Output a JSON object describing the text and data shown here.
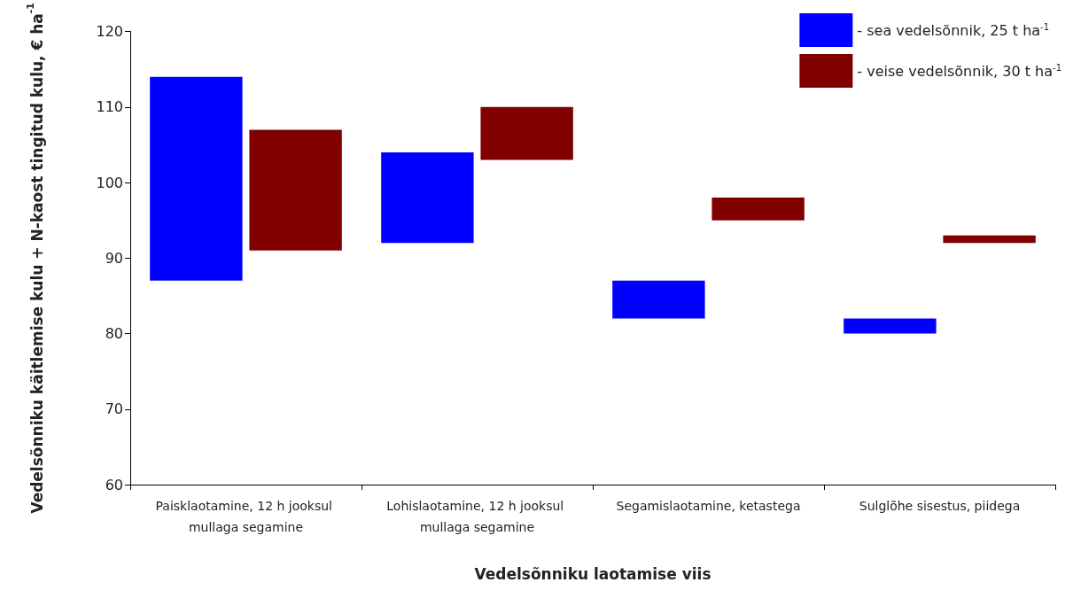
{
  "chart_data": {
    "type": "bar",
    "xlabel": "Vedelsõnniku laotamise viis",
    "ylabel": "Vedelsõnniku käitlemise kulu + N-kaost tingitud kulu, € ha$^{-1}$",
    "categories": [
      "Paisklaotamine, 12 h jooksul mullaga segamine",
      "Lohislaotamine, 12 h jooksul mullaga segamine",
      "Segamislaotamine, ketastega",
      "Sulglõhe sisestus, piidega"
    ],
    "series": [
      {
        "name": "- sea vedelsõnnik, 25 t ha$^{-1}$",
        "color": "#0000ff",
        "base": [
          87,
          92,
          82,
          80
        ],
        "values": [
          27,
          12,
          5,
          2
        ]
      },
      {
        "name": "- veise vedelsõnnik, 30 t ha$^{-1}$",
        "color": "#800000",
        "base": [
          91,
          103,
          95,
          92
        ],
        "values": [
          16,
          7,
          3,
          1
        ]
      }
    ],
    "ylim": [
      60,
      120
    ],
    "yticks": [
      60,
      70,
      80,
      90,
      100,
      110,
      120
    ],
    "grid": false,
    "legend": "top right"
  }
}
